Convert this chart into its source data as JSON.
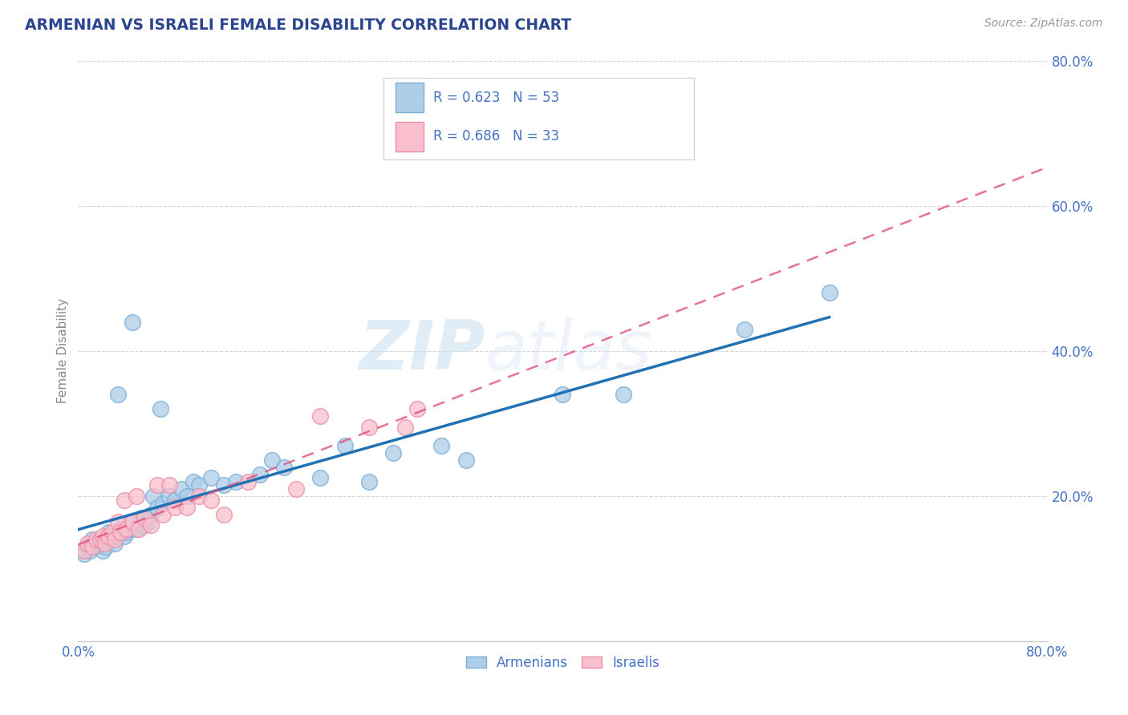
{
  "title": "ARMENIAN VS ISRAELI FEMALE DISABILITY CORRELATION CHART",
  "source": "Source: ZipAtlas.com",
  "ylabel": "Female Disability",
  "legend_label_armenians": "Armenians",
  "legend_label_israelis": "Israelis",
  "armenian_R": 0.623,
  "armenian_N": 53,
  "israeli_R": 0.686,
  "israeli_N": 33,
  "blue_scatter_face": "#aecde8",
  "blue_scatter_edge": "#7bafd4",
  "pink_scatter_face": "#f9bfcc",
  "pink_scatter_edge": "#e990aa",
  "blue_line_color": "#2171b5",
  "pink_line_color": "#e05080",
  "title_color": "#2b4490",
  "axis_label_color": "#4472c4",
  "ylabel_color": "#888888",
  "background_color": "#ffffff",
  "grid_color": "#cccccc",
  "armenian_x": [
    0.005,
    0.008,
    0.01,
    0.012,
    0.015,
    0.018,
    0.02,
    0.022,
    0.023,
    0.025,
    0.025,
    0.028,
    0.03,
    0.032,
    0.033,
    0.035,
    0.038,
    0.04,
    0.042,
    0.043,
    0.045,
    0.048,
    0.05,
    0.052,
    0.055,
    0.058,
    0.06,
    0.062,
    0.065,
    0.068,
    0.07,
    0.075,
    0.08,
    0.085,
    0.09,
    0.095,
    0.1,
    0.11,
    0.12,
    0.13,
    0.15,
    0.16,
    0.17,
    0.2,
    0.22,
    0.24,
    0.26,
    0.3,
    0.32,
    0.4,
    0.45,
    0.55,
    0.62
  ],
  "armenian_y": [
    0.12,
    0.13,
    0.125,
    0.14,
    0.13,
    0.135,
    0.125,
    0.14,
    0.13,
    0.145,
    0.15,
    0.14,
    0.135,
    0.145,
    0.34,
    0.155,
    0.145,
    0.15,
    0.155,
    0.165,
    0.44,
    0.155,
    0.16,
    0.17,
    0.16,
    0.165,
    0.175,
    0.2,
    0.185,
    0.32,
    0.19,
    0.2,
    0.195,
    0.21,
    0.2,
    0.22,
    0.215,
    0.225,
    0.215,
    0.22,
    0.23,
    0.25,
    0.24,
    0.225,
    0.27,
    0.22,
    0.26,
    0.27,
    0.25,
    0.34,
    0.34,
    0.43,
    0.48
  ],
  "israeli_x": [
    0.005,
    0.008,
    0.012,
    0.015,
    0.018,
    0.02,
    0.022,
    0.025,
    0.028,
    0.03,
    0.033,
    0.035,
    0.038,
    0.04,
    0.045,
    0.048,
    0.05,
    0.055,
    0.06,
    0.065,
    0.07,
    0.075,
    0.08,
    0.09,
    0.1,
    0.11,
    0.12,
    0.14,
    0.18,
    0.2,
    0.24,
    0.27,
    0.28
  ],
  "israeli_y": [
    0.125,
    0.135,
    0.13,
    0.14,
    0.14,
    0.145,
    0.135,
    0.145,
    0.15,
    0.14,
    0.165,
    0.15,
    0.195,
    0.155,
    0.165,
    0.2,
    0.155,
    0.17,
    0.16,
    0.215,
    0.175,
    0.215,
    0.185,
    0.185,
    0.2,
    0.195,
    0.175,
    0.22,
    0.21,
    0.31,
    0.295,
    0.295,
    0.32
  ],
  "watermark_zip": "ZIP",
  "watermark_atlas": "atlas",
  "xlim": [
    0.0,
    0.8
  ],
  "ylim": [
    0.0,
    0.8
  ],
  "yticks": [
    0.0,
    0.2,
    0.4,
    0.6,
    0.8
  ],
  "xticks": [
    0.0,
    0.1,
    0.2,
    0.3,
    0.4,
    0.5,
    0.6,
    0.7,
    0.8
  ]
}
